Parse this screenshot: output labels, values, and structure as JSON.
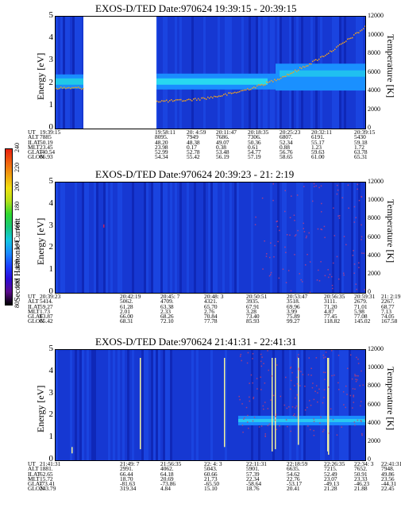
{
  "colorbar": {
    "label": "Second Harmonic Current",
    "ticks": [
      "80",
      "100",
      "120",
      "140",
      "160",
      "180",
      "200",
      "220",
      "240"
    ],
    "colors": [
      "#000000",
      "#5a0a8c",
      "#2a0ad8",
      "#1a40ff",
      "#1a8cff",
      "#12c8e0",
      "#18c878",
      "#30d830",
      "#b4e018",
      "#f0e010",
      "#f0a010",
      "#f06010",
      "#e82010"
    ]
  },
  "panels": [
    {
      "title": "EXOS-D/TED   Date:970624   19:39:15 - 20:39:15",
      "ylabel": "Energy [eV]",
      "y2label": "Temperature [K]",
      "yticks": [
        "0",
        "1",
        "2",
        "3",
        "4",
        "5"
      ],
      "y2ticks": [
        "0",
        "2000",
        "4000",
        "6000",
        "8000",
        "10000",
        "12000"
      ],
      "table": {
        "headers": [
          "UT",
          "ALT",
          "ILAT",
          "MLT",
          "GLAT",
          "GLON"
        ],
        "columns": [
          [
            "19:39:15",
            "7885",
            "50.19",
            "23.45",
            "-40.54",
            "66.93"
          ],
          [
            "19:58:11",
            "8095.",
            "48.20",
            "23.98",
            "52.99",
            "54.34"
          ],
          [
            "20: 4:59",
            "7949",
            "48.38",
            "0.17",
            "52.78",
            "55.42"
          ],
          [
            "20:11:47",
            "7686.",
            "49.07",
            "0.38",
            "53.48",
            "56.19"
          ],
          [
            "20:18:35",
            "7306.",
            "50.36",
            "0.61",
            "54.77",
            "57.19"
          ],
          [
            "20:25:23",
            "6807.",
            "52.34",
            "0.88",
            "56.76",
            "58.65"
          ],
          [
            "20:32:11",
            "6191.",
            "55.17",
            "1.23",
            "59.63",
            "61.00"
          ],
          [
            "20:39:15",
            "5430",
            "59.18",
            "1.72",
            "63.78",
            "65.31"
          ]
        ]
      },
      "chart_data": {
        "type": "heatmap",
        "title": "EXOS-D/TED   Date:970624   19:39:15 - 20:39:15",
        "ylabel": "Energy [eV]",
        "y2label": "Temperature [K]",
        "ylim": [
          0,
          5
        ],
        "y2lim": [
          0,
          12000
        ],
        "data_gap": {
          "from": "19:42:00",
          "to": "19:58:11"
        },
        "dominant_band_energy_ev": 2.1,
        "temperature_trend": {
          "ut": [
            "19:58:11",
            "20:11:47",
            "20:25:23",
            "20:39:15"
          ],
          "value": [
            3000,
            3800,
            5200,
            11000
          ]
        }
      }
    },
    {
      "title": "EXOS-D/TED   Date:970624   20:39:23 - 21: 2:19",
      "ylabel": "Energy [eV]",
      "y2label": "Temperature [K]",
      "yticks": [
        "0",
        "1",
        "2",
        "3",
        "4",
        "5"
      ],
      "y2ticks": [
        "0",
        "2000",
        "4000",
        "6000",
        "8000",
        "10000",
        "12000"
      ],
      "table": {
        "headers": [
          "UT",
          "ALT",
          "ILAT",
          "MLT",
          "GLAT",
          "GLON"
        ],
        "columns": [
          [
            "20:39:23",
            "5414.",
            "59.27",
            "1.73",
            "63.87",
            "65.42"
          ],
          [
            "20:42:19",
            "5062.",
            "61.28",
            "2.01",
            "66.00",
            "68.31"
          ],
          [
            "20:45: 7",
            "4709.",
            "63.38",
            "2.33",
            "68.26",
            "72.10"
          ],
          [
            "20:48: 3",
            "4321.",
            "65.70",
            "2.76",
            "70.84",
            "77.78"
          ],
          [
            "20:50:51",
            "3935.",
            "67.91",
            "3.28",
            "73.40",
            "85.93"
          ],
          [
            "20:53:47",
            "3518.",
            "69.96",
            "3.99",
            "75.89",
            "99.27"
          ],
          [
            "20:56:35",
            "3111.",
            "71.20",
            "4.87",
            "77.45",
            "118.82"
          ],
          [
            "20:59:31",
            "2679.",
            "71.01",
            "5.98",
            "77.08",
            "145.02"
          ],
          [
            "21: 2:19",
            "2267.",
            "68.77",
            "7.13",
            "74.05",
            "167.58"
          ]
        ]
      },
      "chart_data": {
        "type": "heatmap",
        "title": "EXOS-D/TED   Date:970624   20:39:23 - 21: 2:19",
        "ylabel": "Energy [eV]",
        "y2label": "Temperature [K]",
        "ylim": [
          0,
          5
        ],
        "y2lim": [
          0,
          12000
        ]
      }
    },
    {
      "title": "EXOS-D/TED   Date:970624   21:41:31 - 22:41:31",
      "ylabel": "Energy [eV]",
      "y2label": "Temperature [K]",
      "yticks": [
        "0",
        "1",
        "2",
        "3",
        "4",
        "5"
      ],
      "y2ticks": [
        "0",
        "2000",
        "4000",
        "6000",
        "8000",
        "10000",
        "12000"
      ],
      "table": {
        "headers": [
          "UT",
          "ALT",
          "ILAT",
          "MLT",
          "GLAT",
          "GLON"
        ],
        "columns": [
          [
            "21:41:31",
            "1881.",
            "62.65",
            "15.72",
            "-73.41",
            "243.79"
          ],
          [
            "21:49: 7",
            "2991.",
            "66.44",
            "18.70",
            "-81.63",
            "319.34"
          ],
          [
            "21:56:35",
            "4062.",
            "64.18",
            "20.69",
            "-73.86",
            "4.84"
          ],
          [
            "22: 4: 3",
            "5043.",
            "60.66",
            "21.73",
            "-65.50",
            "15.10"
          ],
          [
            "22:11:31",
            "5901.",
            "57.39",
            "22.34",
            "-58.64",
            "18.76"
          ],
          [
            "22:18:59",
            "6635.",
            "54.62",
            "22.76",
            "-53.17",
            "20.41"
          ],
          [
            "22:26:35",
            "7215.",
            "52.49",
            "23.07",
            "-49.13",
            "21.28"
          ],
          [
            "22:34: 3",
            "7652.",
            "50.91",
            "23.33",
            "-46.23",
            "21.88"
          ],
          [
            "22:41:31",
            "7948.",
            "49.86",
            "23.56",
            "-44.31",
            "22.45"
          ]
        ]
      },
      "chart_data": {
        "type": "heatmap",
        "title": "EXOS-D/TED   Date:970624   21:41:31 - 22:41:31",
        "ylabel": "Energy [eV]",
        "y2label": "Temperature [K]",
        "ylim": [
          0,
          5
        ],
        "y2lim": [
          0,
          12000
        ],
        "band_energy_ev": 1.8
      }
    }
  ]
}
